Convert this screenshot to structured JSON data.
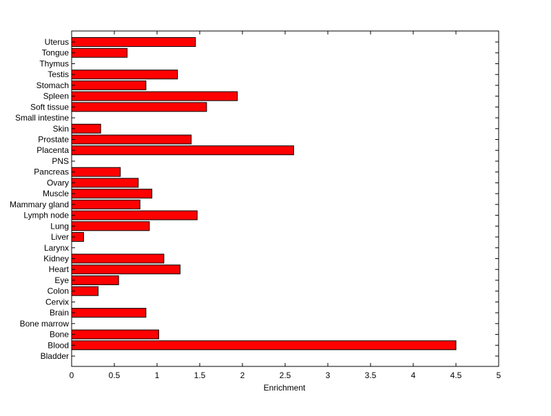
{
  "chart_data": {
    "type": "bar",
    "orientation": "horizontal",
    "categories": [
      "Bladder",
      "Blood",
      "Bone",
      "Bone marrow",
      "Brain",
      "Cervix",
      "Colon",
      "Eye",
      "Heart",
      "Kidney",
      "Larynx",
      "Liver",
      "Lung",
      "Lymph node",
      "Mammary gland",
      "Muscle",
      "Ovary",
      "Pancreas",
      "PNS",
      "Placenta",
      "Prostate",
      "Skin",
      "Small intestine",
      "Soft tissue",
      "Spleen",
      "Stomach",
      "Testis",
      "Thymus",
      "Tongue",
      "Uterus"
    ],
    "values": [
      0,
      4.5,
      1.02,
      0,
      0.87,
      0,
      0.31,
      0.55,
      1.27,
      1.08,
      0,
      0.14,
      0.91,
      1.47,
      0.8,
      0.94,
      0.78,
      0.57,
      0,
      2.6,
      1.4,
      0.34,
      0,
      1.58,
      1.94,
      0.87,
      1.24,
      0,
      0.65,
      1.45
    ],
    "xlabel": "Enrichment",
    "ylabel": "",
    "title": "",
    "xlim": [
      0,
      5
    ],
    "xticks": [
      "0",
      "0.5",
      "1",
      "1.5",
      "2",
      "2.5",
      "3",
      "3.5",
      "4",
      "4.5",
      "5"
    ],
    "bar_color": "#ff0000",
    "grid": false
  }
}
